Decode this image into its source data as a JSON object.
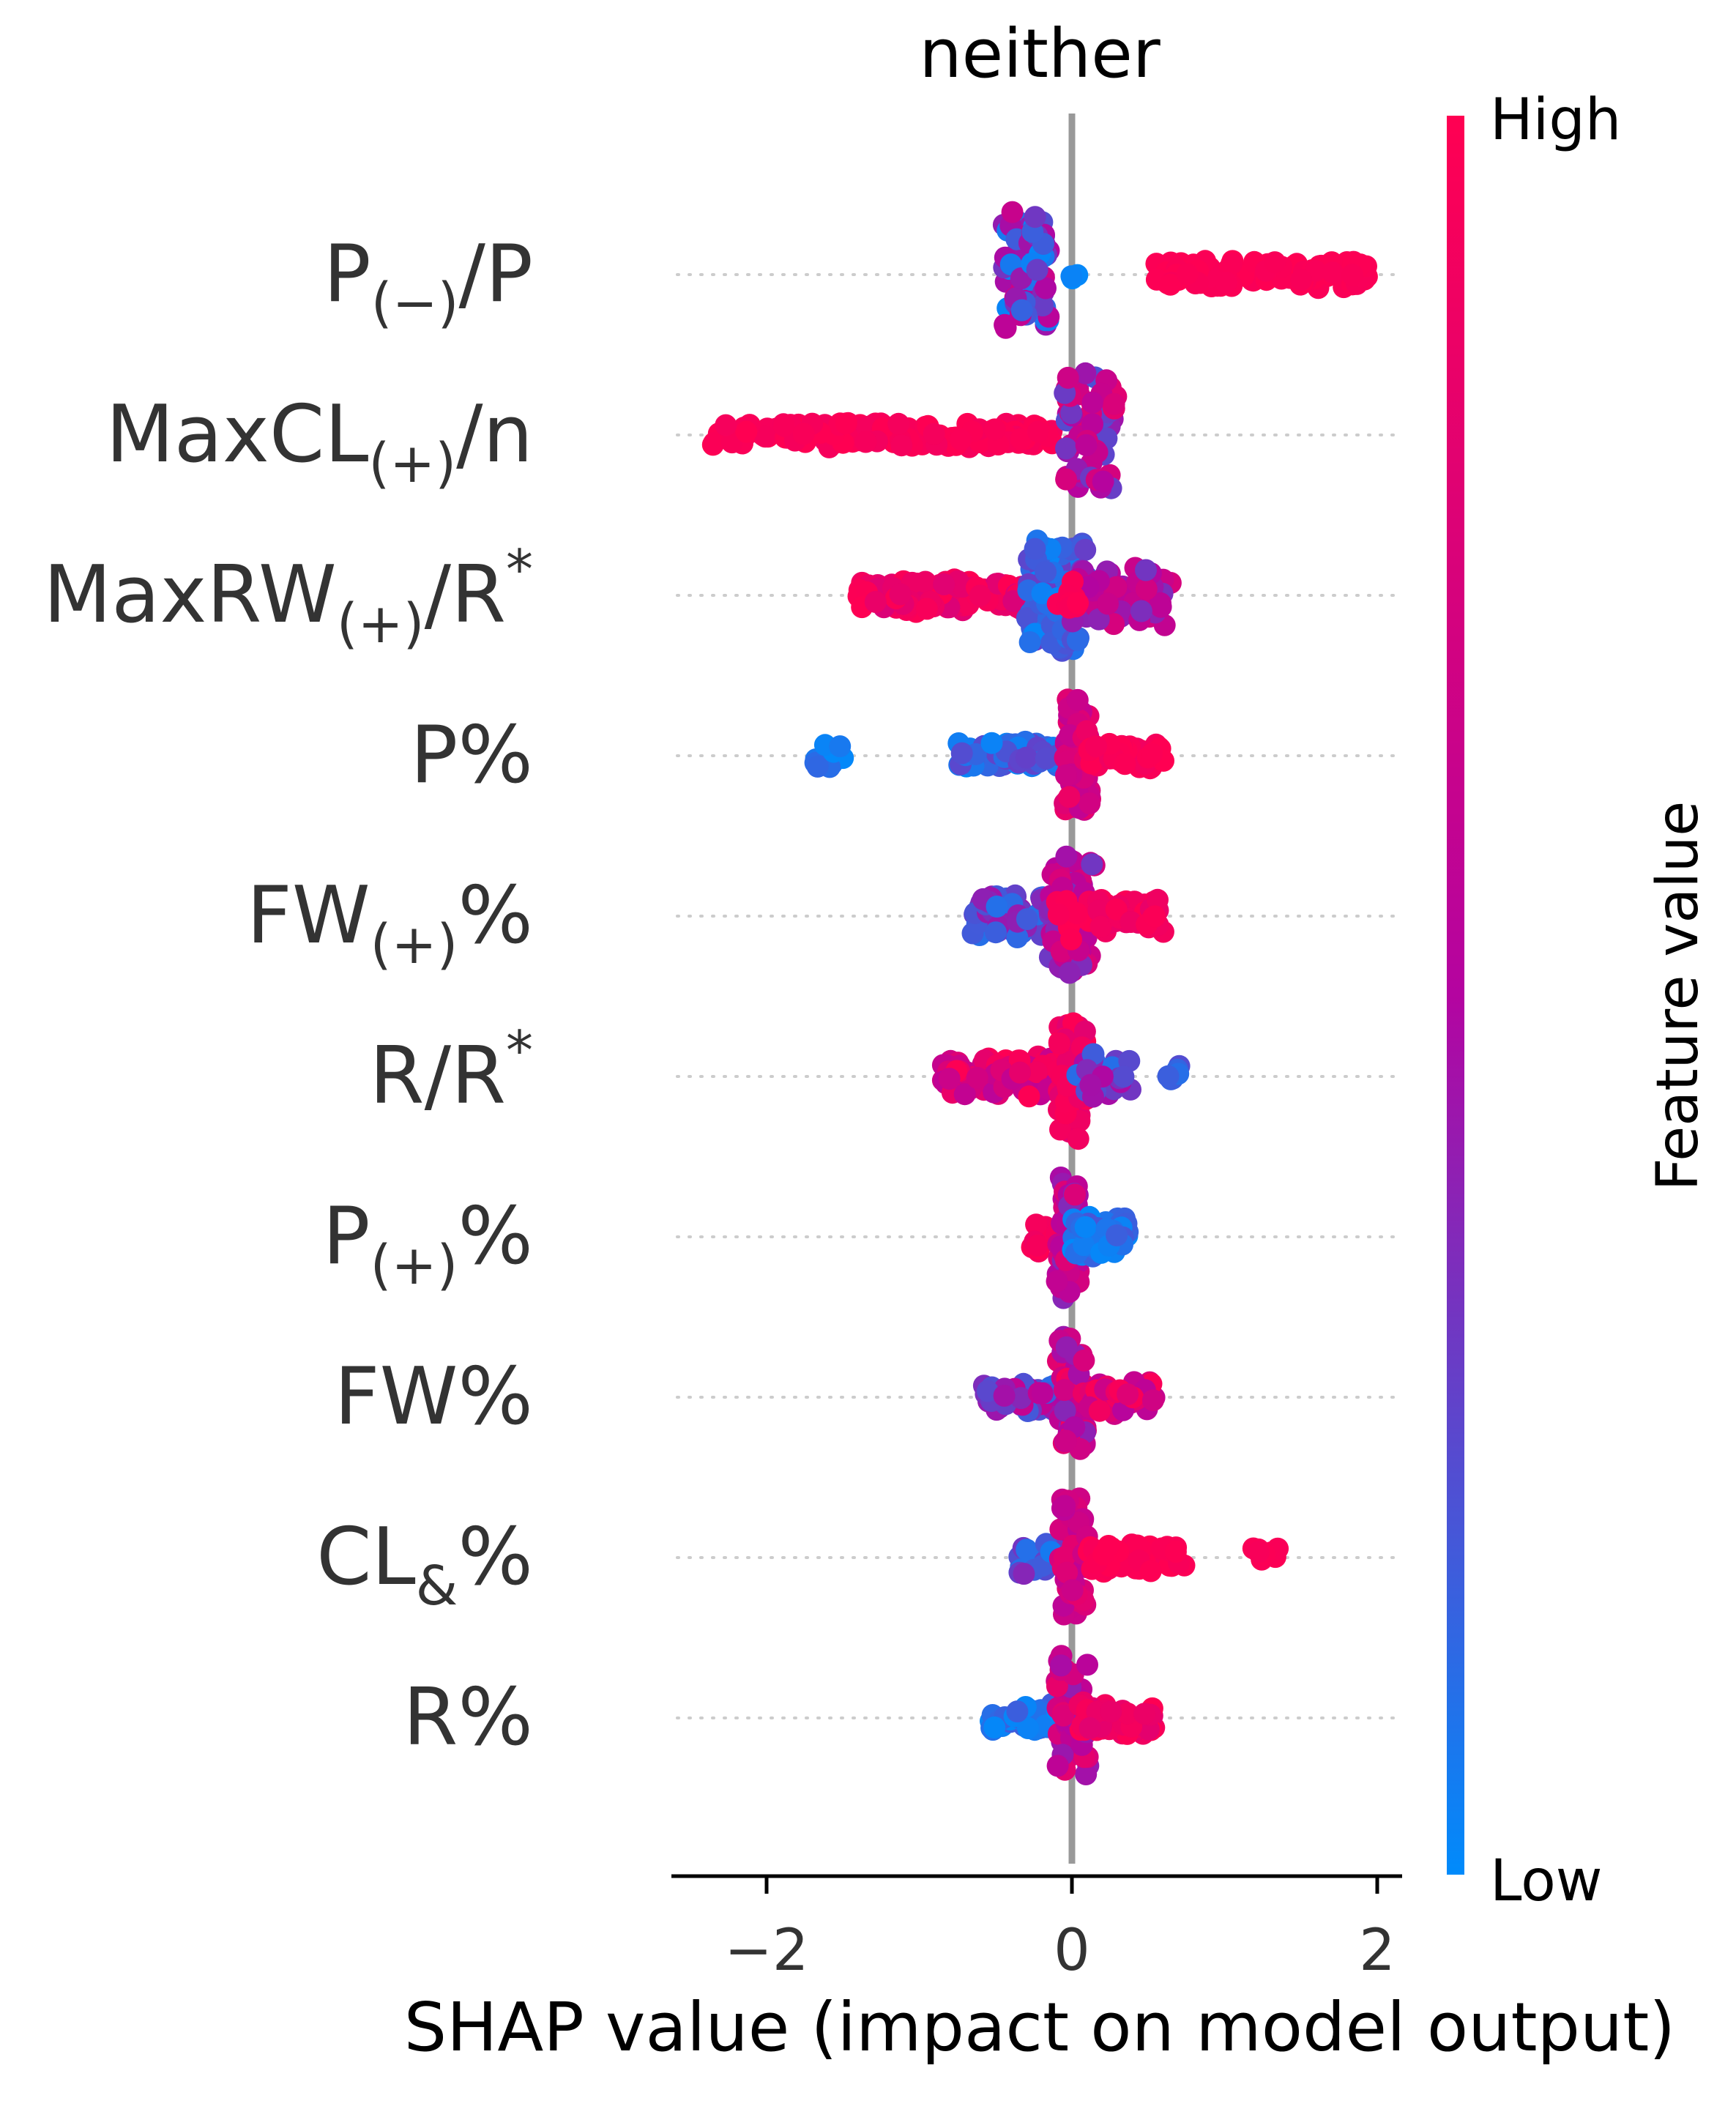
{
  "chart_data": {
    "type": "scatter",
    "variant": "beeswarm",
    "title": "neither",
    "xlabel": "SHAP value (impact on model output)",
    "xlim": [
      -2.6,
      2.15
    ],
    "xticks": [
      -2,
      0,
      2
    ],
    "xtick_labels": [
      "−2",
      "0",
      "2"
    ],
    "grid": "dotted-row-guides",
    "colorbar": {
      "label": "Feature value",
      "high_label": "High",
      "low_label": "Low",
      "high_color": "#ff0052",
      "mid_color": "#b404a0",
      "low_color": "#008bfb"
    },
    "features": [
      {
        "id": "p_neg_over_p",
        "base": "P",
        "sub": "(−)",
        "suffix": "/P",
        "sup": "",
        "clusters": [
          {
            "min": -0.45,
            "max": -0.15,
            "n": 70,
            "spread": 1.0,
            "color_min": 0.0,
            "color_max": 0.7
          },
          {
            "min": -0.05,
            "max": 0.05,
            "n": 3,
            "spread": 0.1,
            "color_min": 0.0,
            "color_max": 0.15
          },
          {
            "min": 0.55,
            "max": 1.95,
            "n": 110,
            "spread": 0.15,
            "color_min": 0.95,
            "color_max": 1.0
          }
        ]
      },
      {
        "id": "maxcl_pos_over_n",
        "base": "MaxCL",
        "sub": "(+)",
        "suffix": "/n",
        "sup": "",
        "clusters": [
          {
            "min": -2.4,
            "max": -0.1,
            "n": 140,
            "spread": 0.12,
            "color_min": 0.92,
            "color_max": 1.0
          },
          {
            "min": -0.05,
            "max": 0.3,
            "n": 60,
            "spread": 1.0,
            "color_min": 0.2,
            "color_max": 0.85
          }
        ]
      },
      {
        "id": "maxrw_pos_over_rstar",
        "base": "MaxRW",
        "sub": "(+)",
        "suffix": "/R",
        "sup": "*",
        "clusters": [
          {
            "min": -1.4,
            "max": -0.3,
            "n": 100,
            "spread": 0.2,
            "color_min": 0.75,
            "color_max": 1.0
          },
          {
            "min": -0.3,
            "max": 0.1,
            "n": 90,
            "spread": 1.0,
            "color_min": 0.0,
            "color_max": 0.3
          },
          {
            "min": 0.0,
            "max": 0.65,
            "n": 60,
            "spread": 0.45,
            "color_min": 0.3,
            "color_max": 0.75
          },
          {
            "min": -0.1,
            "max": 0.05,
            "n": 12,
            "spread": 0.3,
            "color_min": 0.95,
            "color_max": 1.0
          }
        ]
      },
      {
        "id": "p_pct",
        "base": "P%",
        "sub": "",
        "suffix": "",
        "sup": "",
        "clusters": [
          {
            "min": -1.7,
            "max": -1.5,
            "n": 10,
            "spread": 0.15,
            "color_min": 0.0,
            "color_max": 0.15
          },
          {
            "min": -0.75,
            "max": -0.05,
            "n": 70,
            "spread": 0.15,
            "color_min": 0.0,
            "color_max": 0.3
          },
          {
            "min": -0.05,
            "max": 0.12,
            "n": 50,
            "spread": 1.0,
            "color_min": 0.55,
            "color_max": 0.9
          },
          {
            "min": 0.1,
            "max": 0.6,
            "n": 40,
            "spread": 0.15,
            "color_min": 0.9,
            "color_max": 1.0
          }
        ]
      },
      {
        "id": "fw_pos_pct",
        "base": "FW",
        "sub": "(+)",
        "suffix": "%",
        "sup": "",
        "clusters": [
          {
            "min": -0.65,
            "max": -0.1,
            "n": 80,
            "spread": 0.3,
            "color_min": 0.1,
            "color_max": 0.45
          },
          {
            "min": -0.15,
            "max": 0.15,
            "n": 70,
            "spread": 1.0,
            "color_min": 0.3,
            "color_max": 0.9
          },
          {
            "min": 0.1,
            "max": 0.6,
            "n": 40,
            "spread": 0.25,
            "color_min": 0.85,
            "color_max": 1.0
          },
          {
            "min": -0.1,
            "max": 0.05,
            "n": 8,
            "spread": 0.4,
            "color_min": 0.95,
            "color_max": 1.0
          }
        ]
      },
      {
        "id": "rstar_over_r",
        "base": "R",
        "sub": "",
        "suffix": "/R",
        "sup": "*",
        "clusters": [
          {
            "min": -0.85,
            "max": -0.1,
            "n": 90,
            "spread": 0.3,
            "color_min": 0.55,
            "color_max": 1.0
          },
          {
            "min": -0.1,
            "max": 0.1,
            "n": 60,
            "spread": 1.0,
            "color_min": 0.8,
            "color_max": 1.0
          },
          {
            "min": 0.0,
            "max": 0.4,
            "n": 25,
            "spread": 0.35,
            "color_min": 0.1,
            "color_max": 0.5
          },
          {
            "min": 0.62,
            "max": 0.78,
            "n": 6,
            "spread": 0.15,
            "color_min": 0.1,
            "color_max": 0.25
          }
        ]
      },
      {
        "id": "p_pos_pct",
        "base": "P",
        "sub": "(+)",
        "suffix": "%",
        "sup": "",
        "clusters": [
          {
            "min": -0.3,
            "max": -0.05,
            "n": 10,
            "spread": 0.2,
            "color_min": 0.9,
            "color_max": 1.0
          },
          {
            "min": -0.1,
            "max": 0.05,
            "n": 60,
            "spread": 1.0,
            "color_min": 0.35,
            "color_max": 0.8
          },
          {
            "min": 0.0,
            "max": 0.38,
            "n": 45,
            "spread": 0.3,
            "color_min": 0.0,
            "color_max": 0.2
          }
        ]
      },
      {
        "id": "fw_pct",
        "base": "FW%",
        "sub": "",
        "suffix": "",
        "sup": "",
        "clusters": [
          {
            "min": -0.58,
            "max": -0.1,
            "n": 55,
            "spread": 0.2,
            "color_min": 0.1,
            "color_max": 0.6
          },
          {
            "min": -0.1,
            "max": 0.1,
            "n": 60,
            "spread": 1.0,
            "color_min": 0.35,
            "color_max": 0.95
          },
          {
            "min": 0.05,
            "max": 0.55,
            "n": 35,
            "spread": 0.2,
            "color_min": 0.5,
            "color_max": 1.0
          }
        ]
      },
      {
        "id": "cl_amp_pct",
        "base": "CL",
        "sub": "&",
        "suffix": "%",
        "sup": "",
        "clusters": [
          {
            "min": -0.35,
            "max": -0.05,
            "n": 25,
            "spread": 0.2,
            "color_min": 0.05,
            "color_max": 0.4
          },
          {
            "min": -0.08,
            "max": 0.1,
            "n": 55,
            "spread": 1.0,
            "color_min": 0.55,
            "color_max": 0.85
          },
          {
            "min": 0.1,
            "max": 0.75,
            "n": 55,
            "spread": 0.15,
            "color_min": 0.95,
            "color_max": 1.0
          },
          {
            "min": 1.15,
            "max": 1.35,
            "n": 10,
            "spread": 0.1,
            "color_min": 0.95,
            "color_max": 1.0
          }
        ]
      },
      {
        "id": "r_pct",
        "base": "R%",
        "sub": "",
        "suffix": "",
        "sup": "",
        "clusters": [
          {
            "min": -0.55,
            "max": -0.05,
            "n": 50,
            "spread": 0.15,
            "color_min": 0.0,
            "color_max": 0.2
          },
          {
            "min": -0.1,
            "max": 0.12,
            "n": 60,
            "spread": 1.0,
            "color_min": 0.4,
            "color_max": 0.85
          },
          {
            "min": 0.05,
            "max": 0.55,
            "n": 45,
            "spread": 0.2,
            "color_min": 0.8,
            "color_max": 1.0
          }
        ]
      }
    ]
  }
}
